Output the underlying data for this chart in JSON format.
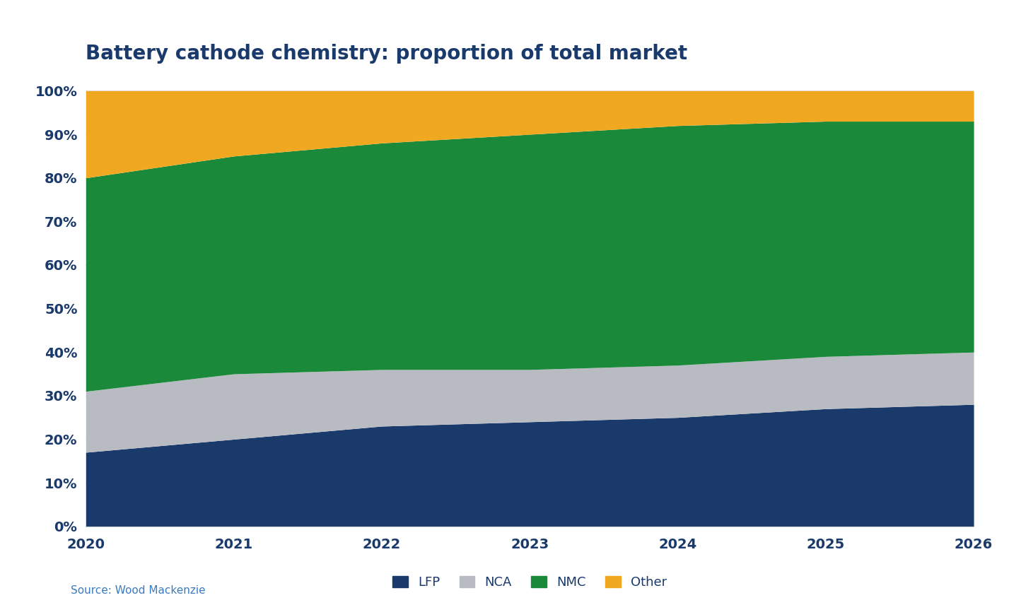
{
  "title": "Battery cathode chemistry: proportion of total market",
  "source": "Source: Wood Mackenzie",
  "years": [
    2020,
    2021,
    2022,
    2023,
    2024,
    2025,
    2026
  ],
  "series": {
    "LFP": [
      17,
      20,
      23,
      24,
      25,
      27,
      28
    ],
    "NCA": [
      14,
      15,
      13,
      12,
      12,
      12,
      12
    ],
    "NMC": [
      49,
      50,
      52,
      54,
      55,
      54,
      53
    ],
    "Other": [
      20,
      15,
      12,
      10,
      8,
      7,
      7
    ]
  },
  "colors": {
    "LFP": "#1a3a6b",
    "NCA": "#b8bcc2",
    "NMC": "#1a8a3a",
    "Other": "#f0a820"
  },
  "ytick_labels": [
    "0%",
    "10%",
    "20%",
    "30%",
    "40%",
    "50%",
    "60%",
    "70%",
    "80%",
    "90%",
    "100%"
  ],
  "ytick_values": [
    0,
    10,
    20,
    30,
    40,
    50,
    60,
    70,
    80,
    90,
    100
  ],
  "background_color": "#ffffff",
  "title_color": "#1a3a6b",
  "axis_label_color": "#1a3a6b",
  "title_fontsize": 20,
  "tick_fontsize": 14,
  "legend_fontsize": 13,
  "source_fontsize": 11
}
